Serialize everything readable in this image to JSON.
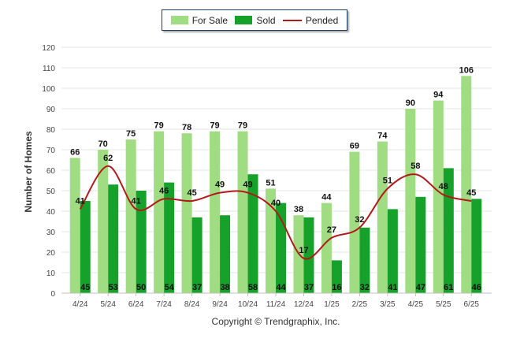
{
  "chart_data": {
    "type": "bar",
    "categories": [
      "4/24",
      "5/24",
      "6/24",
      "7/24",
      "8/24",
      "9/24",
      "10/24",
      "11/24",
      "12/24",
      "1/25",
      "2/25",
      "3/25",
      "4/25",
      "5/25",
      "6/25"
    ],
    "series": [
      {
        "name": "For Sale",
        "type": "bar",
        "color": "#a0dc82",
        "values": [
          66,
          70,
          75,
          79,
          78,
          79,
          79,
          51,
          38,
          44,
          69,
          74,
          90,
          94,
          106
        ]
      },
      {
        "name": "Sold",
        "type": "bar",
        "color": "#15a12a",
        "values": [
          45,
          53,
          50,
          54,
          37,
          38,
          58,
          44,
          37,
          16,
          32,
          41,
          47,
          61,
          46
        ]
      },
      {
        "name": "Pended",
        "type": "line",
        "color": "#b21a1a",
        "values": [
          41,
          62,
          41,
          46,
          45,
          49,
          49,
          40,
          17,
          27,
          32,
          51,
          58,
          48,
          45
        ]
      }
    ],
    "ylabel": "Number of Homes",
    "xlabel": "",
    "ylim": [
      0,
      120
    ],
    "yticks": [
      0,
      10,
      20,
      30,
      40,
      50,
      60,
      70,
      80,
      90,
      100,
      110,
      120
    ],
    "grid": true,
    "legend_position": "top-center"
  },
  "legend": {
    "for_sale": "For Sale",
    "sold": "Sold",
    "pended": "Pended"
  },
  "copyright": "Copyright © Trendgraphix, Inc."
}
